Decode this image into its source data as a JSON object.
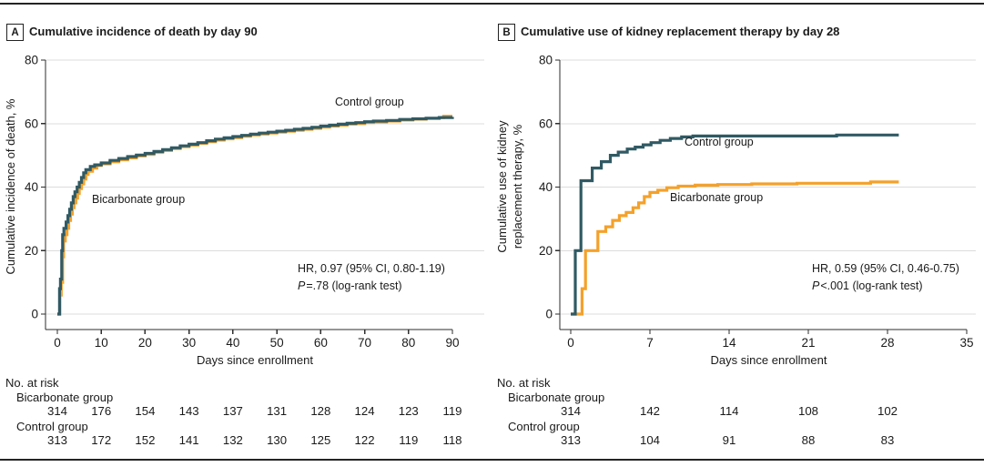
{
  "colors": {
    "control": "#305A64",
    "bicarbonate": "#F4A12A",
    "grid": "#DCDCDC",
    "axis": "#2E2E2E",
    "text": "#1A1A1A"
  },
  "chart_data": [
    {
      "panel_letter": "A",
      "title": "Cumulative incidence of death by day 90",
      "type": "line",
      "subtype": "kaplan-meier-step",
      "xlabel": "Days since enrollment",
      "ylabel_lines": [
        "Cumulative incidence of death, %"
      ],
      "xlim": [
        0,
        90
      ],
      "xticks": [
        0,
        10,
        20,
        30,
        40,
        50,
        60,
        70,
        80,
        90
      ],
      "ylim": [
        0,
        80
      ],
      "yticks": [
        0,
        20,
        40,
        60,
        80
      ],
      "grid": "horizontal",
      "annotation": {
        "hr": "HR, 0.97 (95% CI, 0.80-1.19)",
        "p_italic": "P",
        "p_text": "=.78 (log-rank test)"
      },
      "series": [
        {
          "name": "Bicarbonate group",
          "color_key": "bicarbonate",
          "points": [
            [
              0,
              0
            ],
            [
              0.6,
              6
            ],
            [
              0.9,
              10
            ],
            [
              1.2,
              18
            ],
            [
              1.4,
              23
            ],
            [
              1.8,
              25
            ],
            [
              2.2,
              27
            ],
            [
              2.6,
              29.5
            ],
            [
              3,
              31.5
            ],
            [
              3.4,
              33.5
            ],
            [
              3.8,
              35
            ],
            [
              4.2,
              36.5
            ],
            [
              4.6,
              38
            ],
            [
              5,
              39.5
            ],
            [
              5.5,
              41
            ],
            [
              6,
              42.5
            ],
            [
              6.5,
              44
            ],
            [
              7,
              45
            ],
            [
              8,
              46
            ],
            [
              9,
              46.8
            ],
            [
              10,
              47.3
            ],
            [
              12,
              48
            ],
            [
              14,
              48.6
            ],
            [
              16,
              49.2
            ],
            [
              18,
              49.8
            ],
            [
              20,
              50.3
            ],
            [
              22,
              50.9
            ],
            [
              24,
              51.5
            ],
            [
              26,
              52.1
            ],
            [
              28,
              52.7
            ],
            [
              30,
              53.2
            ],
            [
              32,
              53.8
            ],
            [
              34,
              54.3
            ],
            [
              36,
              54.8
            ],
            [
              38,
              55.2
            ],
            [
              40,
              55.6
            ],
            [
              42,
              56
            ],
            [
              44,
              56.4
            ],
            [
              46,
              56.7
            ],
            [
              48,
              57
            ],
            [
              50,
              57.3
            ],
            [
              52,
              57.6
            ],
            [
              54,
              57.9
            ],
            [
              56,
              58.2
            ],
            [
              58,
              58.5
            ],
            [
              60,
              58.9
            ],
            [
              62,
              59.2
            ],
            [
              64,
              59.5
            ],
            [
              66,
              59.8
            ],
            [
              68,
              60
            ],
            [
              70,
              60.3
            ],
            [
              72,
              60.5
            ],
            [
              75,
              60.8
            ],
            [
              78,
              61.1
            ],
            [
              81,
              61.4
            ],
            [
              84,
              61.6
            ],
            [
              87,
              61.9
            ],
            [
              88,
              62.3
            ],
            [
              90,
              62.3
            ]
          ]
        },
        {
          "name": "Control group",
          "color_key": "control",
          "points": [
            [
              0,
              0
            ],
            [
              0.5,
              8
            ],
            [
              0.7,
              11
            ],
            [
              1,
              20
            ],
            [
              1.2,
              25
            ],
            [
              1.5,
              27
            ],
            [
              2,
              29
            ],
            [
              2.4,
              31
            ],
            [
              2.8,
              33
            ],
            [
              3.2,
              35
            ],
            [
              3.6,
              37
            ],
            [
              4,
              38.5
            ],
            [
              4.5,
              40
            ],
            [
              5,
              41.5
            ],
            [
              5.5,
              43
            ],
            [
              6,
              44.5
            ],
            [
              6.5,
              45.5
            ],
            [
              7.5,
              46.5
            ],
            [
              8.5,
              47
            ],
            [
              10,
              47.6
            ],
            [
              12,
              48.4
            ],
            [
              14,
              49
            ],
            [
              16,
              49.6
            ],
            [
              18,
              50.1
            ],
            [
              20,
              50.6
            ],
            [
              22,
              51.2
            ],
            [
              24,
              51.8
            ],
            [
              26,
              52.4
            ],
            [
              28,
              53
            ],
            [
              30,
              53.5
            ],
            [
              32,
              54
            ],
            [
              34,
              54.6
            ],
            [
              36,
              55.1
            ],
            [
              38,
              55.5
            ],
            [
              40,
              55.9
            ],
            [
              42,
              56.3
            ],
            [
              44,
              56.7
            ],
            [
              46,
              57
            ],
            [
              48,
              57.3
            ],
            [
              50,
              57.6
            ],
            [
              52,
              57.9
            ],
            [
              54,
              58.2
            ],
            [
              56,
              58.5
            ],
            [
              58,
              58.8
            ],
            [
              60,
              59.2
            ],
            [
              62,
              59.5
            ],
            [
              64,
              59.8
            ],
            [
              66,
              60.1
            ],
            [
              68,
              60.3
            ],
            [
              70,
              60.6
            ],
            [
              72,
              60.8
            ],
            [
              75,
              61
            ],
            [
              78,
              61.3
            ],
            [
              81,
              61.5
            ],
            [
              84,
              61.7
            ],
            [
              87,
              61.9
            ],
            [
              90,
              62.1
            ]
          ]
        }
      ],
      "risk_table": {
        "header": "No. at risk",
        "days": [
          0,
          10,
          20,
          30,
          40,
          50,
          60,
          70,
          80,
          90
        ],
        "rows": [
          {
            "label": "Bicarbonate group",
            "values": [
              314,
              176,
              154,
              143,
              137,
              131,
              128,
              124,
              123,
              119
            ]
          },
          {
            "label": "Control group",
            "values": [
              313,
              172,
              152,
              141,
              132,
              130,
              125,
              122,
              119,
              118
            ]
          }
        ]
      }
    },
    {
      "panel_letter": "B",
      "title": "Cumulative use of kidney replacement therapy by day 28",
      "type": "line",
      "subtype": "kaplan-meier-step",
      "xlabel": "Days since enrollment",
      "ylabel_lines": [
        "Cumulative use of kidney",
        "replacement therapy, %"
      ],
      "xlim": [
        0,
        35
      ],
      "xticks": [
        0,
        7,
        14,
        21,
        28,
        35
      ],
      "ylim": [
        0,
        80
      ],
      "yticks": [
        0,
        20,
        40,
        60,
        80
      ],
      "grid": "horizontal",
      "annotation": {
        "hr": "HR, 0.59 (95% CI, 0.46-0.75)",
        "p_italic": "P",
        "p_text": "<.001 (log-rank test)"
      },
      "series": [
        {
          "name": "Bicarbonate group",
          "color_key": "bicarbonate",
          "points": [
            [
              0,
              0
            ],
            [
              1,
              8
            ],
            [
              1.3,
              20
            ],
            [
              2.4,
              26
            ],
            [
              3.1,
              27.5
            ],
            [
              3.7,
              29.5
            ],
            [
              4.3,
              31
            ],
            [
              4.9,
              32
            ],
            [
              5.5,
              33.5
            ],
            [
              6,
              35
            ],
            [
              6.5,
              37
            ],
            [
              7,
              38.3
            ],
            [
              7.7,
              39
            ],
            [
              8.5,
              39.8
            ],
            [
              9.5,
              40.3
            ],
            [
              11,
              40.6
            ],
            [
              13,
              40.8
            ],
            [
              16,
              41
            ],
            [
              20,
              41.2
            ],
            [
              26.5,
              41.6
            ],
            [
              29,
              41.6
            ]
          ]
        },
        {
          "name": "Control group",
          "color_key": "control",
          "points": [
            [
              0,
              0
            ],
            [
              0.4,
              20
            ],
            [
              0.9,
              42
            ],
            [
              1.9,
              46
            ],
            [
              2.7,
              48
            ],
            [
              3.5,
              50
            ],
            [
              4.2,
              51
            ],
            [
              5,
              52
            ],
            [
              5.7,
              52.6
            ],
            [
              6.4,
              53.3
            ],
            [
              7.1,
              54
            ],
            [
              7.9,
              54.7
            ],
            [
              8.8,
              55.3
            ],
            [
              9.8,
              55.8
            ],
            [
              10.8,
              56.1
            ],
            [
              23.5,
              56.4
            ],
            [
              29,
              56.4
            ]
          ]
        }
      ],
      "risk_table": {
        "header": "No. at risk",
        "days": [
          0,
          7,
          14,
          21,
          28
        ],
        "rows": [
          {
            "label": "Bicarbonate group",
            "values": [
              314,
              142,
              114,
              108,
              102
            ]
          },
          {
            "label": "Control group",
            "values": [
              313,
              104,
              91,
              88,
              83
            ]
          }
        ]
      }
    }
  ]
}
